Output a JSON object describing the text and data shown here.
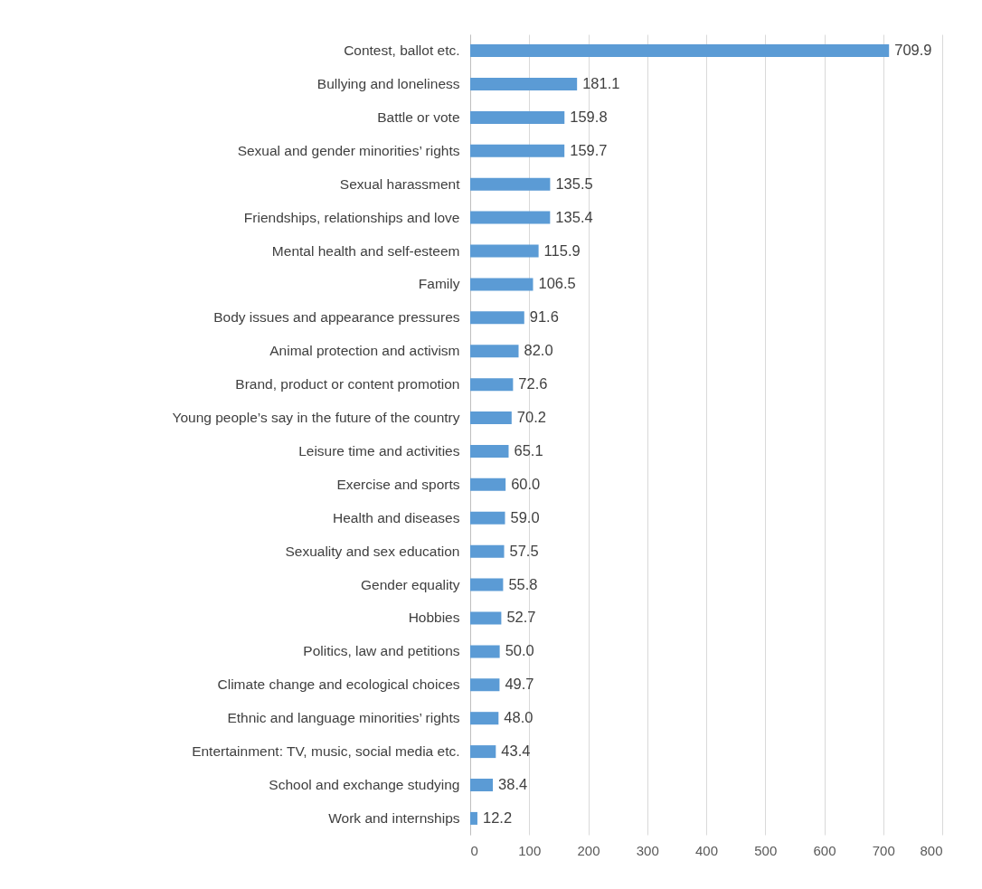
{
  "chart_data": {
    "type": "bar",
    "orientation": "horizontal",
    "categories": [
      "Contest, ballot etc.",
      "Bullying and loneliness",
      "Battle or vote",
      "Sexual and gender minorities’ rights",
      "Sexual harassment",
      "Friendships, relationships and love",
      "Mental health and self-esteem",
      "Family",
      "Body issues and appearance pressures",
      "Animal protection and activism",
      "Brand, product or content promotion",
      "Young people’s say in the future of the country",
      "Leisure time and activities",
      "Exercise and sports",
      "Health and diseases",
      "Sexuality and sex education",
      "Gender equality",
      "Hobbies",
      "Politics, law and petitions",
      "Climate change and ecological choices",
      "Ethnic and language minorities’ rights",
      "Entertainment: TV, music, social media etc.",
      "School and exchange studying",
      "Work and internships"
    ],
    "values": [
      709.9,
      181.1,
      159.8,
      159.7,
      135.5,
      135.4,
      115.9,
      106.5,
      91.6,
      82.0,
      72.6,
      70.2,
      65.1,
      60.0,
      59.0,
      57.5,
      55.8,
      52.7,
      50.0,
      49.7,
      48.0,
      43.4,
      38.4,
      12.2
    ],
    "color": "#5b9bd5",
    "xlim": [
      0,
      800
    ],
    "xticks": [
      0,
      100,
      200,
      300,
      400,
      500,
      600,
      700,
      800
    ],
    "value_labels": [
      "709.9",
      "181.1",
      "159.8",
      "159.7",
      "135.5",
      "135.4",
      "115.9",
      "106.5",
      "91.6",
      "82.0",
      "72.6",
      "70.2",
      "65.1",
      "60.0",
      "59.0",
      "57.5",
      "55.8",
      "52.7",
      "50.0",
      "49.7",
      "48.0",
      "43.4",
      "38.4",
      "12.2"
    ],
    "grid": "x"
  }
}
